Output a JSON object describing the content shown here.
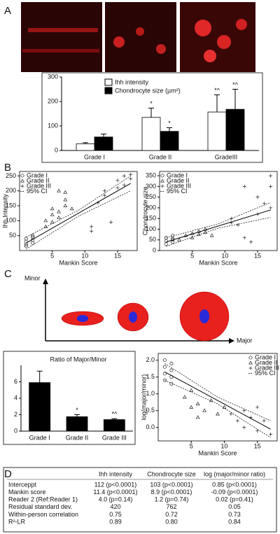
{
  "panel_labels": [
    "A",
    "B",
    "C",
    "D"
  ],
  "chart_data": [
    {
      "type": "bar",
      "categories": [
        "Grade I",
        "Grade II",
        "GradeIII"
      ],
      "ylim": [
        0,
        300
      ],
      "yticks": [
        0,
        100,
        200,
        300
      ],
      "legend": "top",
      "series": [
        {
          "name": "Ihh intensity",
          "color": "#ffffff",
          "values": [
            27,
            135,
            157
          ],
          "errors": [
            5,
            38,
            70
          ],
          "significance": [
            null,
            "*",
            "*^"
          ]
        },
        {
          "name": "Chondrocyte size (µm²)",
          "color": "#000000",
          "values": [
            55,
            78,
            168
          ],
          "errors": [
            12,
            15,
            82
          ],
          "significance": [
            null,
            "*",
            "*^"
          ]
        }
      ]
    },
    {
      "type": "scatter",
      "x_label": "Mankin Score",
      "y_label": "Ihh Intensity",
      "xlim": [
        0,
        18
      ],
      "xticks": [
        5,
        10,
        15
      ],
      "ylim": [
        0,
        265
      ],
      "yticks": [
        50,
        100,
        150,
        200,
        250
      ],
      "legend": "top-left",
      "series": [
        {
          "name": "Grade I",
          "marker": "circle",
          "x": [
            1,
            1,
            1,
            1,
            2,
            2,
            2,
            2
          ],
          "values": [
            20,
            30,
            40,
            15,
            25,
            35,
            45,
            50
          ]
        },
        {
          "name": "Grade II",
          "marker": "triangle",
          "x": [
            4,
            4,
            5,
            5,
            5,
            6,
            6,
            6,
            7,
            7,
            7,
            8
          ],
          "values": [
            80,
            100,
            95,
            120,
            140,
            110,
            130,
            200,
            150,
            170,
            195,
            140
          ]
        },
        {
          "name": "Grade III",
          "marker": "plus",
          "x": [
            11,
            11,
            12,
            13,
            13,
            14,
            15,
            15,
            16,
            16,
            17,
            17
          ],
          "values": [
            65,
            80,
            160,
            185,
            200,
            95,
            210,
            235,
            220,
            250,
            240,
            255
          ]
        }
      ],
      "fit": {
        "x": [
          1,
          17
        ],
        "values": [
          25,
          225
        ]
      },
      "ci": {
        "name": "95% CI",
        "x": [
          1,
          9,
          17
        ],
        "lower": [
          5,
          115,
          200
        ],
        "upper": [
          45,
          135,
          250
        ]
      }
    },
    {
      "type": "scatter",
      "x_label": "Mankin Score",
      "y_label": "Chondrocyte size",
      "xlim": [
        0,
        18
      ],
      "xticks": [
        5,
        10,
        15
      ],
      "ylim": [
        0,
        370
      ],
      "yticks": [
        0,
        50,
        100,
        150,
        200,
        250,
        300,
        350
      ],
      "legend": "top-left",
      "series": [
        {
          "name": "Grade I",
          "marker": "circle",
          "x": [
            1,
            1,
            1,
            2,
            2,
            2,
            2
          ],
          "values": [
            30,
            45,
            60,
            40,
            55,
            70,
            50
          ]
        },
        {
          "name": "Grade II",
          "marker": "triangle",
          "x": [
            3,
            4,
            5,
            5,
            6,
            6,
            7,
            7,
            8
          ],
          "values": [
            50,
            70,
            60,
            80,
            75,
            90,
            85,
            100,
            70
          ]
        },
        {
          "name": "Grade III",
          "marker": "plus",
          "x": [
            11,
            11,
            12,
            13,
            13,
            14,
            15,
            15,
            16,
            17,
            17,
            17
          ],
          "values": [
            130,
            150,
            120,
            60,
            300,
            40,
            250,
            170,
            220,
            200,
            300,
            350
          ]
        }
      ],
      "fit": {
        "x": [
          1,
          17
        ],
        "values": [
          40,
          190
        ]
      },
      "ci": {
        "name": "95% CI",
        "x": [
          1,
          9,
          17
        ],
        "lower": [
          20,
          105,
          155
        ],
        "upper": [
          60,
          125,
          225
        ]
      }
    },
    {
      "type": "bar",
      "title": "Ratio of Major/Minor",
      "categories": [
        "Grade I",
        "Grade II",
        "Grade III"
      ],
      "ylim": [
        0,
        8
      ],
      "yticks": [
        0,
        2,
        4,
        6
      ],
      "series": [
        {
          "color": "#000000",
          "values": [
            5.9,
            1.75,
            1.4
          ],
          "errors": [
            1.4,
            0.25,
            0.12
          ],
          "significance": [
            null,
            "*",
            "*^"
          ]
        }
      ]
    },
    {
      "type": "scatter",
      "x_label": "Mankin Score",
      "y_label": "log(major/minor)",
      "xlim": [
        0,
        18
      ],
      "xticks": [
        5,
        10,
        15
      ],
      "ylim": [
        -0.4,
        2.2
      ],
      "yticks": [
        {
          "value": 0,
          "label": "0.0"
        },
        0.5,
        {
          "value": 1,
          "label": "1.0"
        },
        1.5,
        {
          "value": 2,
          "label": "2.0"
        }
      ],
      "legend": "top-right",
      "series": [
        {
          "name": "Grade I",
          "marker": "circle",
          "x": [
            1,
            1,
            1,
            1,
            2,
            2,
            2,
            2
          ],
          "values": [
            1.4,
            1.6,
            1.8,
            2.0,
            1.5,
            1.7,
            1.9,
            1.3
          ]
        },
        {
          "name": "Grade II",
          "marker": "triangle",
          "x": [
            4,
            5,
            5,
            6,
            6,
            7,
            8,
            9,
            10
          ],
          "values": [
            0.9,
            0.6,
            1.1,
            0.3,
            0.7,
            0.5,
            0.8,
            0.4,
            0.6
          ]
        },
        {
          "name": "Grade III",
          "marker": "plus",
          "x": [
            11,
            12,
            13,
            13,
            14,
            15,
            15,
            16,
            17
          ],
          "values": [
            0.4,
            0.2,
            0.5,
            0.0,
            0.3,
            0.6,
            -0.1,
            0.2,
            -0.2
          ]
        }
      ],
      "fit": {
        "x": [
          1,
          17
        ],
        "values": [
          1.65,
          -0.05
        ]
      },
      "ci": {
        "name": "95% CI",
        "x": [
          1,
          9,
          17
        ],
        "lower": [
          1.4,
          0.7,
          -0.3
        ],
        "upper": [
          1.9,
          0.9,
          0.2
        ]
      }
    }
  ],
  "diagram": {
    "y_label": "Minor",
    "x_label": "Major"
  },
  "table": {
    "header": [
      "Ihh intensity",
      "Chondrocyte size",
      "log (major/minor ratio)"
    ],
    "rows": [
      [
        "Interceppt",
        "112 (p<0.0001)",
        "103 (p<0.0001)",
        "0.85 (p<0.0001)"
      ],
      [
        "Mankin score",
        "11.4 (p<0.0001)",
        "8.9 (p<0.0001)",
        "-0.09 (p<0.0001)"
      ],
      [
        "Reader 2 (Ref:Reader 1)",
        "4.0 (p=0.14)",
        "1.2 (p=0.74)",
        "0.02 (p=0.41)"
      ],
      [
        "Residual standard dev.",
        "420",
        "762",
        "0.05"
      ],
      [
        "Within-person correlation",
        "0.75",
        "0.72",
        "0.73"
      ],
      [
        "R²-LR",
        "0.89",
        "0.80",
        "0.84"
      ]
    ]
  }
}
